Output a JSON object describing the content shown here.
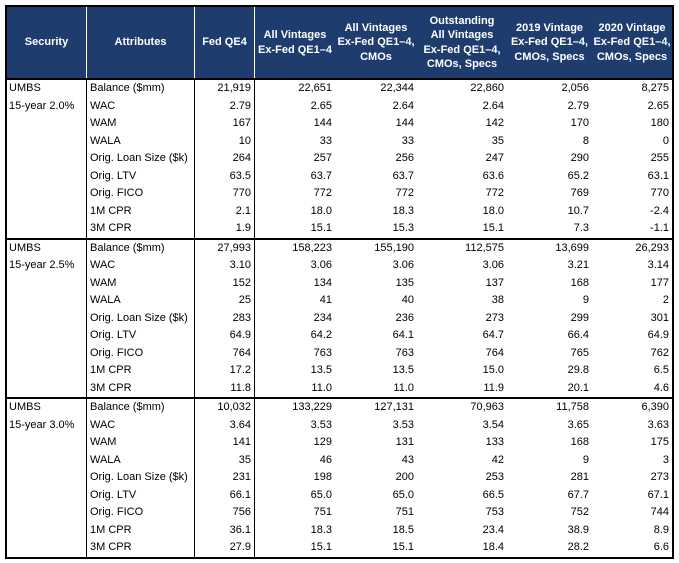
{
  "colors": {
    "header_bg": "#1e3c6e",
    "header_text": "#ffffff",
    "border": "#000000"
  },
  "table": {
    "header": {
      "cells": [
        {
          "id": "security",
          "lines": [
            "Security"
          ]
        },
        {
          "id": "attributes",
          "lines": [
            "Attributes"
          ]
        },
        {
          "id": "fed-qe4",
          "lines": [
            "Fed QE4"
          ]
        },
        {
          "id": "all-vintages-ex-fed",
          "lines": [
            "All Vintages",
            "Ex-Fed QE1–4"
          ]
        },
        {
          "id": "all-vintages-ex-fed-cmos",
          "lines": [
            "All Vintages",
            "Ex-Fed QE1–4,",
            "CMOs"
          ]
        },
        {
          "id": "outstanding-all-vintages-ex-fed-cmos-specs",
          "lines": [
            "Outstanding",
            "All Vintages",
            "Ex-Fed QE1–4,",
            "CMOs, Specs"
          ]
        },
        {
          "id": "2019-vintage-ex-fed-cmos-specs",
          "lines": [
            "2019 Vintage",
            "Ex-Fed QE1–4,",
            "CMOs, Specs"
          ]
        },
        {
          "id": "2020-vintage-ex-fed-cmos-specs",
          "lines": [
            "2020 Vintage",
            "Ex-Fed QE1–4,",
            "CMOs, Specs"
          ]
        }
      ]
    },
    "sections": [
      {
        "security_lines": [
          "UMBS",
          "15-year 2.0%"
        ],
        "rows": [
          {
            "attribute": "Balance ($mm)",
            "values": [
              "21,919",
              "22,651",
              "22,344",
              "22,860",
              "2,056",
              "8,275"
            ]
          },
          {
            "attribute": "WAC",
            "values": [
              "2.79",
              "2.65",
              "2.64",
              "2.64",
              "2.79",
              "2.65"
            ]
          },
          {
            "attribute": "WAM",
            "values": [
              "167",
              "144",
              "144",
              "142",
              "170",
              "180"
            ]
          },
          {
            "attribute": "WALA",
            "values": [
              "10",
              "33",
              "33",
              "35",
              "8",
              "0"
            ]
          },
          {
            "attribute": "Orig. Loan Size ($k)",
            "values": [
              "264",
              "257",
              "256",
              "247",
              "290",
              "255"
            ]
          },
          {
            "attribute": "Orig. LTV",
            "values": [
              "63.5",
              "63.7",
              "63.7",
              "63.6",
              "65.2",
              "63.1"
            ]
          },
          {
            "attribute": "Orig. FICO",
            "values": [
              "770",
              "772",
              "772",
              "772",
              "769",
              "770"
            ]
          },
          {
            "attribute": "1M CPR",
            "values": [
              "2.1",
              "18.0",
              "18.3",
              "18.0",
              "10.7",
              "-2.4"
            ]
          },
          {
            "attribute": "3M CPR",
            "values": [
              "1.9",
              "15.1",
              "15.3",
              "15.1",
              "7.3",
              "-1.1"
            ]
          }
        ]
      },
      {
        "security_lines": [
          "UMBS",
          "15-year 2.5%"
        ],
        "rows": [
          {
            "attribute": "Balance ($mm)",
            "values": [
              "27,993",
              "158,223",
              "155,190",
              "112,575",
              "13,699",
              "26,293"
            ]
          },
          {
            "attribute": "WAC",
            "values": [
              "3.10",
              "3.06",
              "3.06",
              "3.06",
              "3.21",
              "3.14"
            ]
          },
          {
            "attribute": "WAM",
            "values": [
              "152",
              "134",
              "135",
              "137",
              "168",
              "177"
            ]
          },
          {
            "attribute": "WALA",
            "values": [
              "25",
              "41",
              "40",
              "38",
              "9",
              "2"
            ]
          },
          {
            "attribute": "Orig. Loan Size ($k)",
            "values": [
              "283",
              "234",
              "236",
              "273",
              "299",
              "301"
            ]
          },
          {
            "attribute": "Orig. LTV",
            "values": [
              "64.9",
              "64.2",
              "64.1",
              "64.7",
              "66.4",
              "64.9"
            ]
          },
          {
            "attribute": "Orig. FICO",
            "values": [
              "764",
              "763",
              "763",
              "764",
              "765",
              "762"
            ]
          },
          {
            "attribute": "1M CPR",
            "values": [
              "17.2",
              "13.5",
              "13.5",
              "15.0",
              "29.8",
              "6.5"
            ]
          },
          {
            "attribute": "3M CPR",
            "values": [
              "11.8",
              "11.0",
              "11.0",
              "11.9",
              "20.1",
              "4.6"
            ]
          }
        ]
      },
      {
        "security_lines": [
          "UMBS",
          "15-year 3.0%"
        ],
        "rows": [
          {
            "attribute": "Balance ($mm)",
            "values": [
              "10,032",
              "133,229",
              "127,131",
              "70,963",
              "11,758",
              "6,390"
            ]
          },
          {
            "attribute": "WAC",
            "values": [
              "3.64",
              "3.53",
              "3.53",
              "3.54",
              "3.65",
              "3.63"
            ]
          },
          {
            "attribute": "WAM",
            "values": [
              "141",
              "129",
              "131",
              "133",
              "168",
              "175"
            ]
          },
          {
            "attribute": "WALA",
            "values": [
              "35",
              "46",
              "43",
              "42",
              "9",
              "3"
            ]
          },
          {
            "attribute": "Orig. Loan Size ($k)",
            "values": [
              "231",
              "198",
              "200",
              "253",
              "281",
              "273"
            ]
          },
          {
            "attribute": "Orig. LTV",
            "values": [
              "66.1",
              "65.0",
              "65.0",
              "66.5",
              "67.7",
              "67.1"
            ]
          },
          {
            "attribute": "Orig. FICO",
            "values": [
              "756",
              "751",
              "751",
              "753",
              "752",
              "744"
            ]
          },
          {
            "attribute": "1M CPR",
            "values": [
              "36.1",
              "18.3",
              "18.5",
              "23.4",
              "38.9",
              "8.9"
            ]
          },
          {
            "attribute": "3M CPR",
            "values": [
              "27.9",
              "15.1",
              "15.1",
              "18.4",
              "28.2",
              "6.6"
            ]
          }
        ]
      }
    ]
  }
}
